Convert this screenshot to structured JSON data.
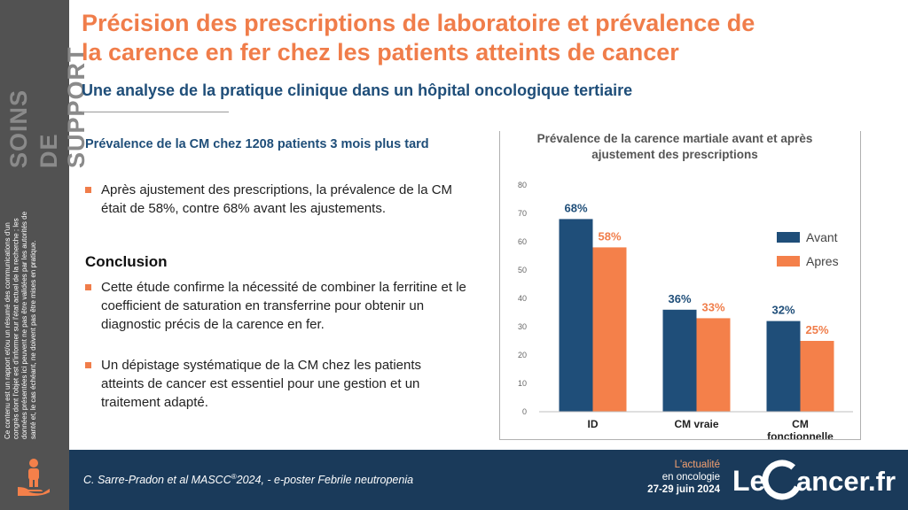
{
  "sidebar": {
    "title_line1": "SOINS",
    "title_line2": "DE SUPPORT",
    "disclaimer": "Ce contenu est un rapport et/ou un résumé des communications d'un congrès dont l'objet est d'informer sur l'état actuel de la recherche ; les données présentées ici peuvent ne pas être validées par les autorités de santé et, le cas échéant, ne doivent pas être mises en pratique."
  },
  "header": {
    "title": "Précision des prescriptions de laboratoire et prévalence de la carence en fer chez les patients atteints de cancer",
    "subtitle": "Une analyse de la pratique clinique dans un hôpital oncologique tertiaire"
  },
  "content": {
    "section_heading": "Prévalence de la CM chez 1208 patients 3 mois plus tard",
    "bullet1": "Après ajustement des prescriptions, la prévalence de la CM était de 58%, contre 68% avant les ajustements.",
    "conclusion_heading": "Conclusion",
    "bullet2": "Cette étude confirme la nécessité de combiner la ferritine et le coefficient de saturation en transferrine pour obtenir un diagnostic précis de la carence en fer.",
    "bullet3": "Un dépistage systématique de la CM chez les patients atteints de cancer est essentiel pour une gestion et un traitement adapté."
  },
  "chart_data": {
    "type": "bar",
    "title": "Prévalence de la carence martiale avant et après ajustement des prescriptions",
    "categories": [
      "ID",
      "CM vraie",
      "CM fonctionnelle"
    ],
    "series": [
      {
        "name": "Avant",
        "values": [
          68,
          36,
          32
        ],
        "labels": [
          "68%",
          "36%",
          "32%"
        ],
        "color": "#1f4e79",
        "label_color": "#1f4e79"
      },
      {
        "name": "Apres",
        "values": [
          58,
          33,
          25
        ],
        "labels": [
          "58%",
          "33%",
          "25%"
        ],
        "color": "#f4804a",
        "label_color": "#f07d4a"
      }
    ],
    "yticks": [
      "0",
      "10",
      "20",
      "30",
      "40",
      "50",
      "60",
      "70",
      "80"
    ],
    "ylim": [
      0,
      80
    ],
    "legend_position": "right"
  },
  "footer": {
    "citation_prefix": "C. Sarre-Pradon  et al MASCC",
    "citation_reg": "®",
    "citation_suffix": "2024, - e-poster Febrile neutropenia",
    "actualite_line1": "L'actualité",
    "actualite_line2": "en oncologie",
    "actualite_dates": "27-29 juin 2024",
    "logo_le": "Le",
    "logo_c": "C",
    "logo_rest": "ancer.fr"
  },
  "colors": {
    "accent": "#f07d4a",
    "brand_blue": "#1f4e79",
    "sidebar": "#525252",
    "footer": "#1a3a5a"
  }
}
